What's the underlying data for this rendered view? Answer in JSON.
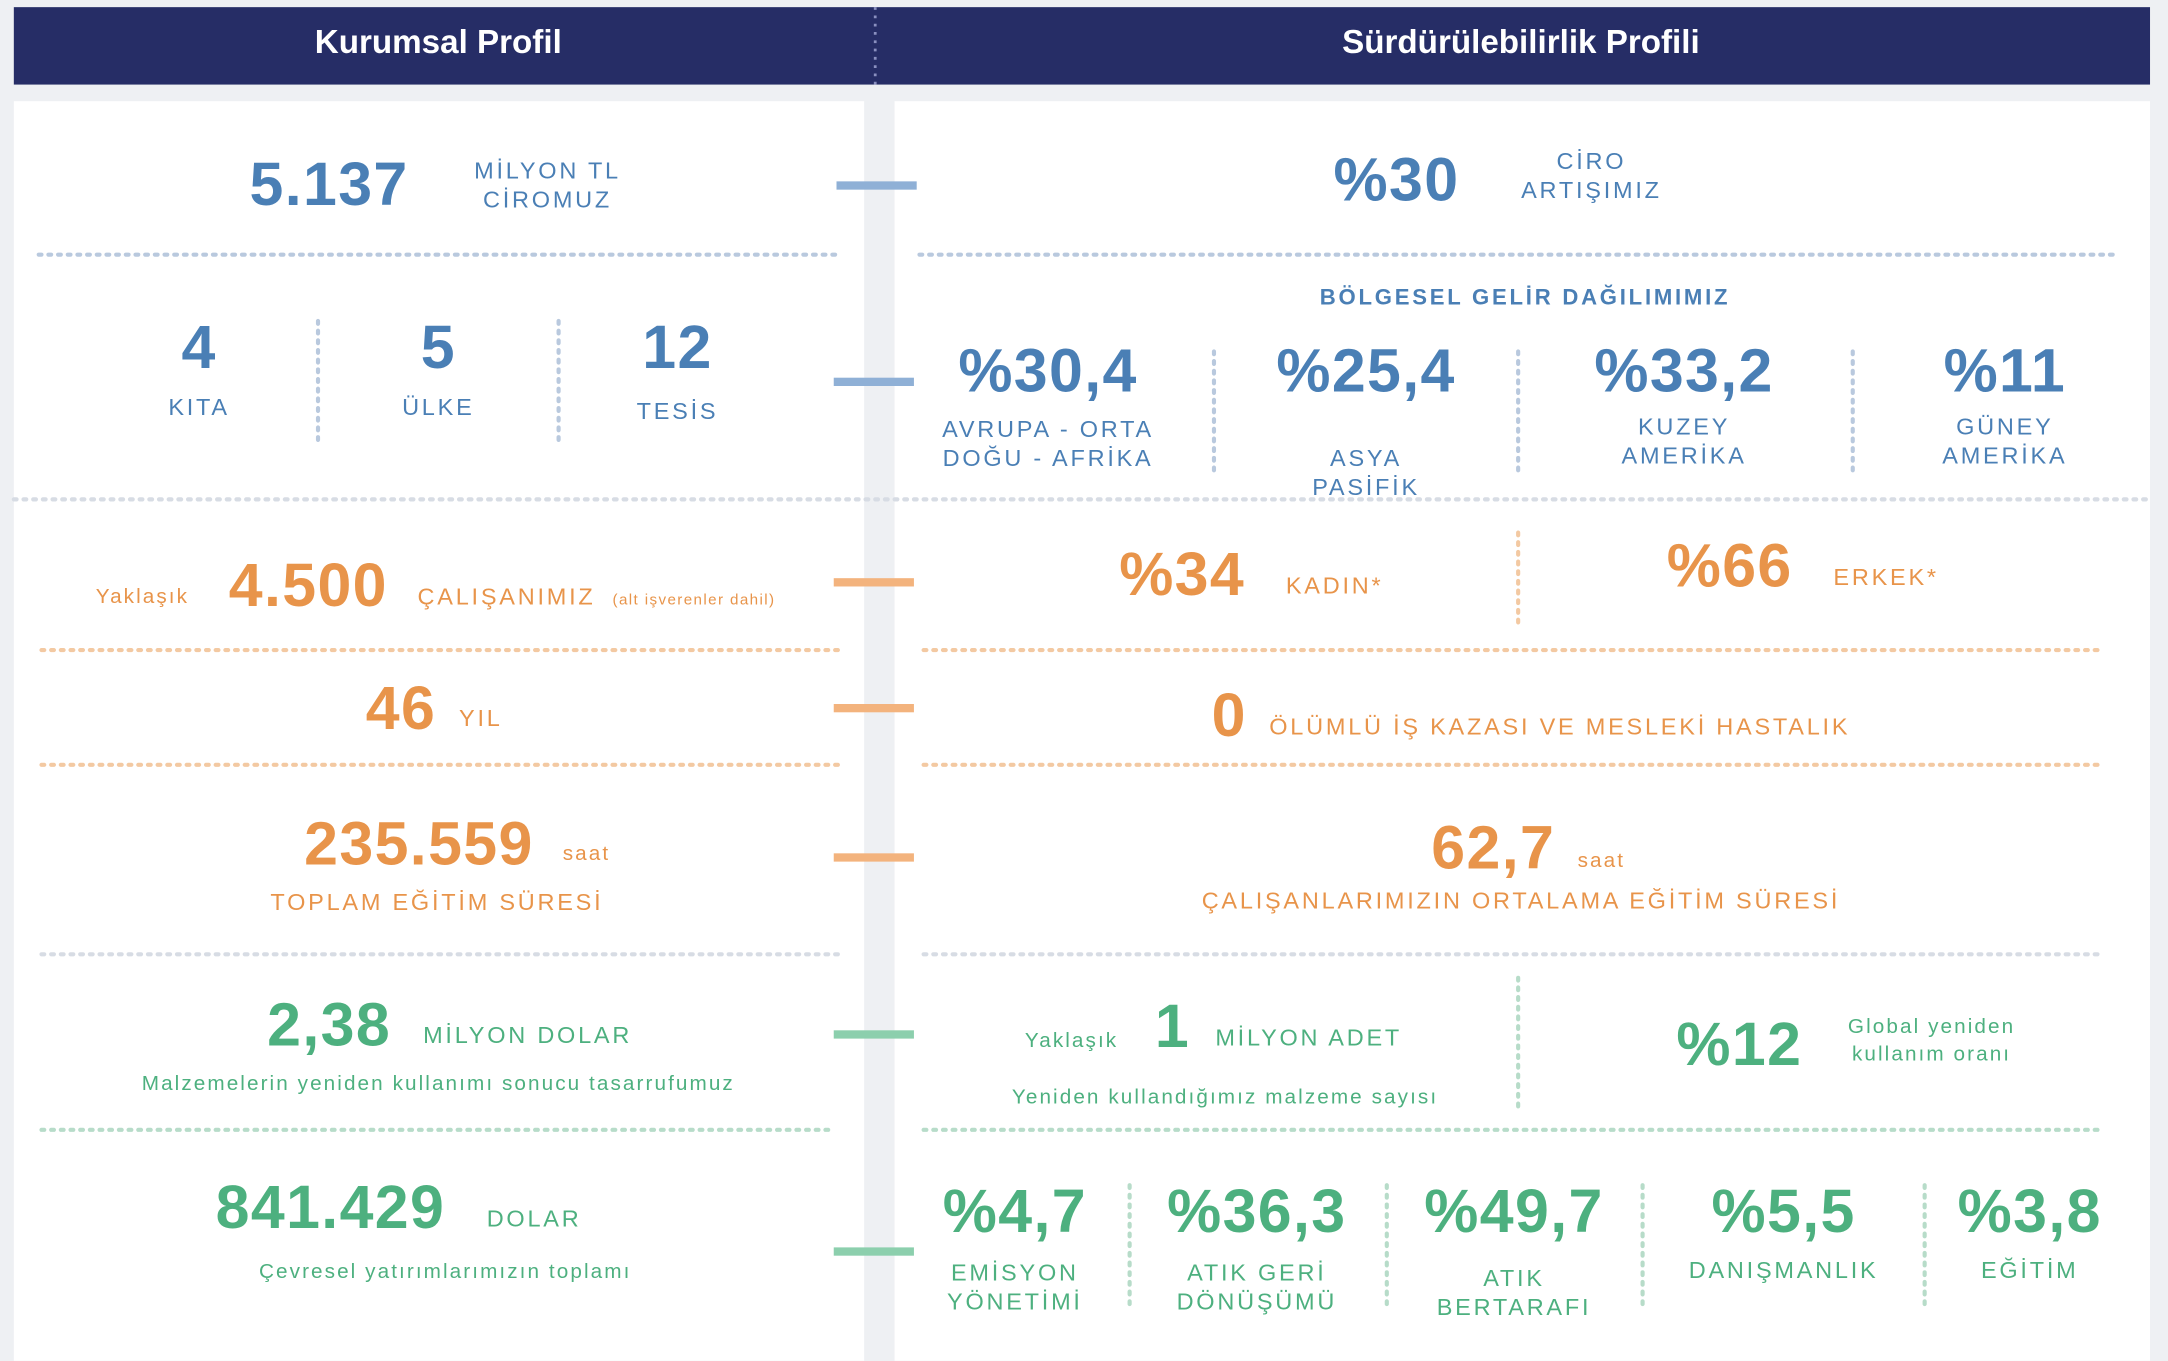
{
  "header": {
    "left": "Kurumsal Profil",
    "right": "Sürdürülebilirlik Profili"
  },
  "left": {
    "revenue": {
      "value": "5.137",
      "lines": [
        "MİLYON TL",
        "CİROMUZ"
      ]
    },
    "presence": [
      {
        "value": "4",
        "label": "KITA"
      },
      {
        "value": "5",
        "label": "ÜLKE"
      },
      {
        "value": "12",
        "label": "TESİS"
      }
    ],
    "employees": {
      "prefix": "Yaklaşık",
      "value": "4.500",
      "label": "ÇALIŞANIMIZ",
      "note": "(alt işverenler dahil)"
    },
    "years": {
      "value": "46",
      "label": "YIL"
    },
    "training": {
      "value": "235.559",
      "unit": "saat",
      "label": "TOPLAM EĞİTİM SÜRESİ"
    },
    "savings": {
      "value": "2,38",
      "label": "MİLYON DOLAR",
      "description": "Malzemelerin yeniden kullanımı sonucu tasarrufumuz"
    },
    "environment": {
      "value": "841.429",
      "label": "DOLAR",
      "description": "Çevresel yatırımlarımızın toplamı"
    }
  },
  "right": {
    "growth": {
      "value": "%30",
      "lines": [
        "CİRO",
        "ARTIŞIMIZ"
      ]
    },
    "regional": {
      "title": "BÖLGESEL GELİR DAĞILIMIMIZ",
      "items": [
        {
          "value": "%30,4",
          "lines": [
            "AVRUPA - ORTA",
            "DOĞU - AFRİKA"
          ]
        },
        {
          "value": "%25,4",
          "lines": [
            "ASYA",
            "PASİFİK"
          ]
        },
        {
          "value": "%33,2",
          "lines": [
            "KUZEY",
            "AMERİKA"
          ]
        },
        {
          "value": "%11",
          "lines": [
            "GÜNEY",
            "AMERİKA"
          ]
        }
      ]
    },
    "gender": [
      {
        "value": "%34",
        "label": "KADIN*"
      },
      {
        "value": "%66",
        "label": "ERKEK*"
      }
    ],
    "accidents": {
      "value": "0",
      "label": "ÖLÜMLÜ İŞ KAZASI VE MESLEKİ HASTALIK"
    },
    "avg_training": {
      "value": "62,7",
      "unit": "saat",
      "label": "ÇALIŞANLARIMIZIN ORTALAMA EĞİTİM SÜRESİ"
    },
    "reuse": {
      "prefix": "Yaklaşık",
      "value": "1",
      "label": "MİLYON ADET",
      "description": "Yeniden kullandığımız malzeme sayısı"
    },
    "reuse_rate": {
      "value": "%12",
      "lines": [
        "Global yeniden",
        "kullanım oranı"
      ]
    },
    "env_spend": [
      {
        "value": "%4,7",
        "lines": [
          "EMİSYON",
          "YÖNETİMİ"
        ]
      },
      {
        "value": "%36,3",
        "lines": [
          "ATIK GERİ",
          "DÖNÜŞÜMÜ"
        ]
      },
      {
        "value": "%49,7",
        "lines": [
          "ATIK",
          "BERTARAFI"
        ]
      },
      {
        "value": "%5,5",
        "lines": [
          "DANIŞMANLIK"
        ]
      },
      {
        "value": "%3,8",
        "lines": [
          "EĞİTİM"
        ]
      }
    ]
  }
}
